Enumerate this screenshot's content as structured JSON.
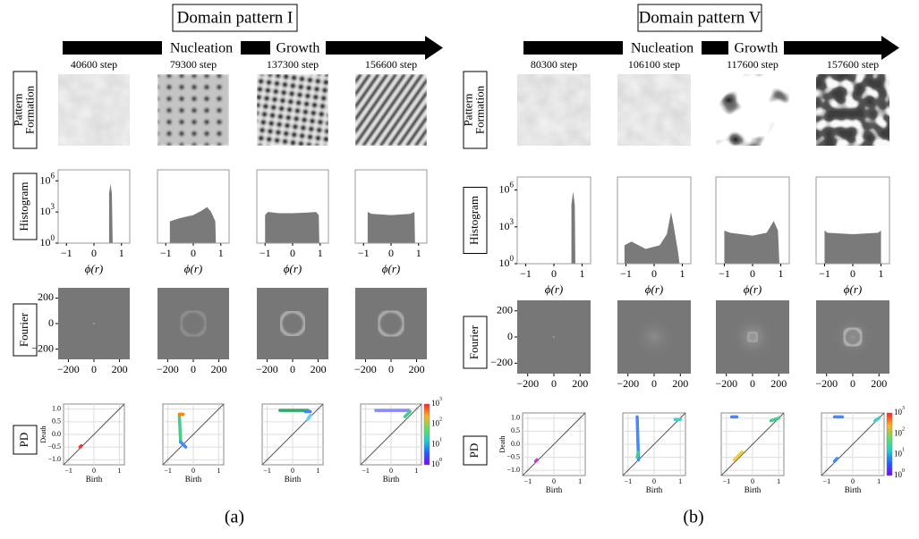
{
  "panels": [
    {
      "title": "Domain pattern I",
      "arrow_labels": [
        "Nucleation",
        "Growth"
      ],
      "steps": [
        "40600  step",
        "79300  step",
        "137300  step",
        "156600  step"
      ],
      "row_labels": [
        [
          "Pattern",
          "Formation"
        ],
        [
          "Histogram"
        ],
        [
          "Fourier"
        ],
        [
          "PD"
        ]
      ],
      "caption": "(a)"
    },
    {
      "title": "Domain pattern V",
      "arrow_labels": [
        "Nucleation",
        "Growth"
      ],
      "steps": [
        "80300  step",
        "106100  step",
        "117600  step",
        "157600  step"
      ],
      "row_labels": [
        [
          "Pattern",
          "Formation"
        ],
        [
          "Histogram"
        ],
        [
          "Fourier"
        ],
        [
          "PD"
        ]
      ],
      "caption": "(b)"
    }
  ],
  "histogram": {
    "xticks": [
      "−1",
      "0",
      "1"
    ],
    "yticks": [
      {
        "base": "10",
        "exp": "0"
      },
      {
        "base": "10",
        "exp": "3"
      },
      {
        "base": "10",
        "exp": "6"
      }
    ],
    "xlabel": "ϕ(r)"
  },
  "fourier": {
    "xticks": [
      "−200",
      "0",
      "200"
    ],
    "yticks": [
      "200",
      "0",
      "−200"
    ]
  },
  "pd": {
    "xticks": [
      "−1",
      "0",
      "1"
    ],
    "yticks": [
      "1.0",
      "0.5",
      "0.0",
      "−0.5",
      "−1.0"
    ],
    "xlabel": "Birth",
    "ylabel": "Death",
    "colorbar_ticks": [
      {
        "base": "10",
        "exp": "0"
      },
      {
        "base": "10",
        "exp": "1"
      },
      {
        "base": "10",
        "exp": "2"
      },
      {
        "base": "10",
        "exp": "3"
      }
    ]
  }
}
